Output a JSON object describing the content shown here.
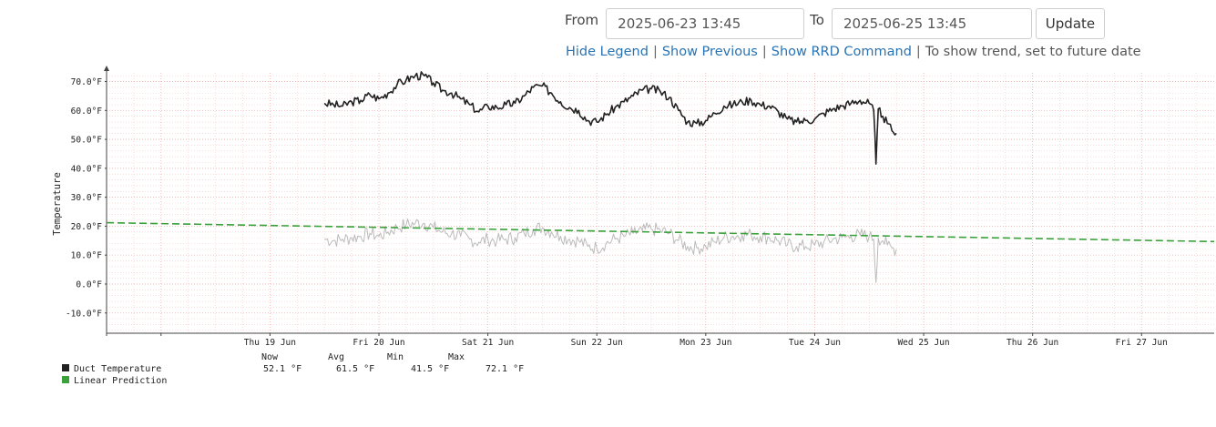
{
  "controls": {
    "from_label": "From",
    "from_value": "2025-06-23 13:45",
    "to_label": "To",
    "to_value": "2025-06-25 13:45",
    "update_label": "Update"
  },
  "links": {
    "hide_legend": "Hide Legend",
    "show_previous": "Show Previous",
    "show_rrd_command": "Show RRD Command",
    "separator": "|",
    "trend_hint": "To show trend, set to future date"
  },
  "chart_data": {
    "type": "line",
    "ylabel": "Temperature",
    "y_unit": "°F",
    "ylim": [
      -17,
      73
    ],
    "y_ticks": [
      -10,
      0,
      10,
      20,
      30,
      40,
      50,
      60,
      70
    ],
    "y_tick_labels": [
      "-10.0°F",
      "0.0°F",
      "10.0°F",
      "20.0°F",
      "30.0°F",
      "40.0°F",
      "50.0°F",
      "60.0°F",
      "70.0°F"
    ],
    "x_tick_labels": [
      "Thu 19 Jun",
      "Fri 20 Jun",
      "Sat 21 Jun",
      "Sun 22 Jun",
      "Mon 23 Jun",
      "Tue 24 Jun",
      "Wed 25 Jun",
      "Thu 26 Jun",
      "Fri 27 Jun"
    ],
    "xlim": [
      "2025-06-18 00:00",
      "2025-06-28 04:00"
    ],
    "grid": true,
    "series": [
      {
        "name": "Duct Temperature",
        "color": "#222222",
        "points": [
          [
            "2025-06-20 00:00",
            62.5
          ],
          [
            "2025-06-20 02:00",
            62.0
          ],
          [
            "2025-06-20 04:00",
            61.5
          ],
          [
            "2025-06-20 06:00",
            63.0
          ],
          [
            "2025-06-20 08:00",
            63.5
          ],
          [
            "2025-06-20 10:00",
            65.5
          ],
          [
            "2025-06-20 12:00",
            64.0
          ],
          [
            "2025-06-20 14:00",
            66.0
          ],
          [
            "2025-06-20 16:00",
            69.0
          ],
          [
            "2025-06-20 18:00",
            70.5
          ],
          [
            "2025-06-20 20:00",
            72.0
          ],
          [
            "2025-06-20 22:00",
            72.0
          ],
          [
            "2025-06-21 00:00",
            69.5
          ],
          [
            "2025-06-21 02:00",
            67.0
          ],
          [
            "2025-06-21 04:00",
            66.0
          ],
          [
            "2025-06-21 06:00",
            64.0
          ],
          [
            "2025-06-21 08:00",
            62.0
          ],
          [
            "2025-06-21 10:00",
            59.5
          ],
          [
            "2025-06-21 12:00",
            61.5
          ],
          [
            "2025-06-21 14:00",
            61.0
          ],
          [
            "2025-06-21 16:00",
            62.0
          ],
          [
            "2025-06-21 18:00",
            62.5
          ],
          [
            "2025-06-21 20:00",
            65.0
          ],
          [
            "2025-06-21 22:00",
            68.0
          ],
          [
            "2025-06-22 00:00",
            68.5
          ],
          [
            "2025-06-22 02:00",
            66.0
          ],
          [
            "2025-06-22 04:00",
            63.0
          ],
          [
            "2025-06-22 06:00",
            61.0
          ],
          [
            "2025-06-22 08:00",
            60.0
          ],
          [
            "2025-06-22 10:00",
            56.5
          ],
          [
            "2025-06-22 12:00",
            56.0
          ],
          [
            "2025-06-22 14:00",
            58.5
          ],
          [
            "2025-06-22 16:00",
            61.0
          ],
          [
            "2025-06-22 18:00",
            63.0
          ],
          [
            "2025-06-22 20:00",
            65.0
          ],
          [
            "2025-06-22 22:00",
            67.0
          ],
          [
            "2025-06-23 00:00",
            67.5
          ],
          [
            "2025-06-23 02:00",
            66.5
          ],
          [
            "2025-06-23 04:00",
            64.5
          ],
          [
            "2025-06-23 06:00",
            60.0
          ],
          [
            "2025-06-23 08:00",
            56.0
          ],
          [
            "2025-06-23 10:00",
            55.5
          ],
          [
            "2025-06-23 12:00",
            56.5
          ],
          [
            "2025-06-23 14:00",
            59.0
          ],
          [
            "2025-06-23 16:00",
            61.5
          ],
          [
            "2025-06-23 18:00",
            62.0
          ],
          [
            "2025-06-23 20:00",
            63.0
          ],
          [
            "2025-06-23 22:00",
            63.5
          ],
          [
            "2025-06-24 00:00",
            62.0
          ],
          [
            "2025-06-24 02:00",
            61.5
          ],
          [
            "2025-06-24 04:00",
            59.5
          ],
          [
            "2025-06-24 06:00",
            57.0
          ],
          [
            "2025-06-24 08:00",
            56.0
          ],
          [
            "2025-06-24 10:00",
            56.5
          ],
          [
            "2025-06-24 12:00",
            57.0
          ],
          [
            "2025-06-24 14:00",
            59.0
          ],
          [
            "2025-06-24 16:00",
            60.5
          ],
          [
            "2025-06-24 18:00",
            61.5
          ],
          [
            "2025-06-24 20:00",
            62.5
          ],
          [
            "2025-06-24 22:00",
            63.5
          ],
          [
            "2025-06-25 00:00",
            62.5
          ],
          [
            "2025-06-25 01:00",
            60.0
          ],
          [
            "2025-06-25 01:30",
            41.5
          ],
          [
            "2025-06-25 02:00",
            60.5
          ],
          [
            "2025-06-25 03:00",
            58.0
          ],
          [
            "2025-06-25 04:00",
            55.5
          ],
          [
            "2025-06-25 05:00",
            53.0
          ],
          [
            "2025-06-25 06:00",
            52.1
          ]
        ]
      },
      {
        "name": "Linear Prediction",
        "color": "#3aa13a",
        "dashed": true,
        "points": [
          [
            "2025-06-18 00:00",
            21.2
          ],
          [
            "2025-06-28 04:00",
            14.7
          ]
        ]
      },
      {
        "name": "",
        "color": "#bbbbbb",
        "points": [
          [
            "2025-06-20 00:00",
            15.5
          ],
          [
            "2025-06-20 02:00",
            15.0
          ],
          [
            "2025-06-20 04:00",
            15.5
          ],
          [
            "2025-06-20 06:00",
            16.0
          ],
          [
            "2025-06-20 08:00",
            16.5
          ],
          [
            "2025-06-20 10:00",
            17.5
          ],
          [
            "2025-06-20 12:00",
            16.5
          ],
          [
            "2025-06-20 14:00",
            18.0
          ],
          [
            "2025-06-20 16:00",
            19.5
          ],
          [
            "2025-06-20 18:00",
            20.5
          ],
          [
            "2025-06-20 20:00",
            21.0
          ],
          [
            "2025-06-20 22:00",
            21.0
          ],
          [
            "2025-06-21 00:00",
            19.5
          ],
          [
            "2025-06-21 02:00",
            18.0
          ],
          [
            "2025-06-21 04:00",
            17.5
          ],
          [
            "2025-06-21 06:00",
            16.5
          ],
          [
            "2025-06-21 08:00",
            15.5
          ],
          [
            "2025-06-21 10:00",
            14.5
          ],
          [
            "2025-06-21 12:00",
            15.5
          ],
          [
            "2025-06-21 14:00",
            15.0
          ],
          [
            "2025-06-21 16:00",
            15.5
          ],
          [
            "2025-06-21 18:00",
            16.0
          ],
          [
            "2025-06-21 20:00",
            17.5
          ],
          [
            "2025-06-21 22:00",
            19.0
          ],
          [
            "2025-06-22 00:00",
            19.5
          ],
          [
            "2025-06-22 02:00",
            18.0
          ],
          [
            "2025-06-22 04:00",
            16.5
          ],
          [
            "2025-06-22 06:00",
            15.5
          ],
          [
            "2025-06-22 08:00",
            15.0
          ],
          [
            "2025-06-22 10:00",
            13.0
          ],
          [
            "2025-06-22 12:00",
            12.5
          ],
          [
            "2025-06-22 14:00",
            14.0
          ],
          [
            "2025-06-22 16:00",
            15.5
          ],
          [
            "2025-06-22 18:00",
            16.5
          ],
          [
            "2025-06-22 20:00",
            17.5
          ],
          [
            "2025-06-22 22:00",
            18.5
          ],
          [
            "2025-06-23 00:00",
            19.0
          ],
          [
            "2025-06-23 02:00",
            18.5
          ],
          [
            "2025-06-23 04:00",
            17.5
          ],
          [
            "2025-06-23 06:00",
            15.0
          ],
          [
            "2025-06-23 08:00",
            13.0
          ],
          [
            "2025-06-23 10:00",
            12.5
          ],
          [
            "2025-06-23 12:00",
            13.0
          ],
          [
            "2025-06-23 14:00",
            14.5
          ],
          [
            "2025-06-23 16:00",
            16.0
          ],
          [
            "2025-06-23 18:00",
            16.5
          ],
          [
            "2025-06-23 20:00",
            17.0
          ],
          [
            "2025-06-23 22:00",
            17.0
          ],
          [
            "2025-06-24 00:00",
            16.5
          ],
          [
            "2025-06-24 02:00",
            16.0
          ],
          [
            "2025-06-24 04:00",
            15.0
          ],
          [
            "2025-06-24 06:00",
            13.5
          ],
          [
            "2025-06-24 08:00",
            13.0
          ],
          [
            "2025-06-24 10:00",
            13.0
          ],
          [
            "2025-06-24 12:00",
            13.5
          ],
          [
            "2025-06-24 14:00",
            14.5
          ],
          [
            "2025-06-24 16:00",
            15.5
          ],
          [
            "2025-06-24 18:00",
            16.0
          ],
          [
            "2025-06-24 20:00",
            16.5
          ],
          [
            "2025-06-24 22:00",
            17.0
          ],
          [
            "2025-06-25 00:00",
            16.5
          ],
          [
            "2025-06-25 01:00",
            15.5
          ],
          [
            "2025-06-25 01:30",
            0.5
          ],
          [
            "2025-06-25 02:00",
            16.0
          ],
          [
            "2025-06-25 03:00",
            15.0
          ],
          [
            "2025-06-25 04:00",
            13.5
          ],
          [
            "2025-06-25 05:00",
            12.5
          ],
          [
            "2025-06-25 06:00",
            12.0
          ]
        ]
      }
    ],
    "legend": {
      "placement": "bottom-left",
      "headers": [
        "Now",
        "Avg",
        "Min",
        "Max"
      ],
      "rows": [
        {
          "name": "Duct Temperature",
          "color": "#222222",
          "now": "52.1 °F",
          "avg": "61.5 °F",
          "min": "41.5 °F",
          "max": "72.1 °F"
        },
        {
          "name": "Linear Prediction",
          "color": "#3aa13a"
        }
      ]
    }
  }
}
